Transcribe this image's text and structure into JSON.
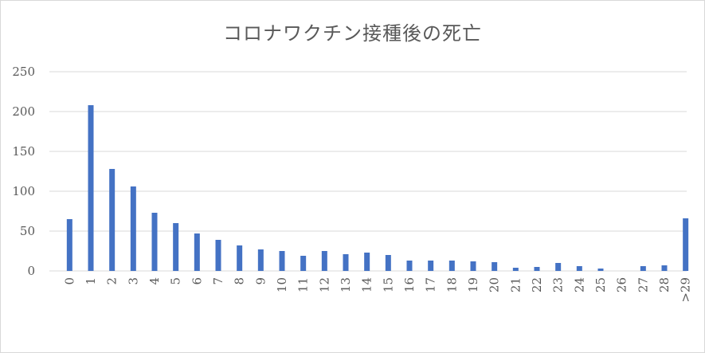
{
  "chart_data": {
    "type": "bar",
    "title": "コロナワクチン接種後の死亡",
    "xlabel": "",
    "ylabel": "",
    "ylim": [
      0,
      250
    ],
    "yticks": [
      0,
      50,
      100,
      150,
      200,
      250
    ],
    "grid": true,
    "legend": "none",
    "bar_color": "#4472c4",
    "categories": [
      "0",
      "1",
      "2",
      "3",
      "4",
      "5",
      "6",
      "7",
      "8",
      "9",
      "10",
      "11",
      "12",
      "13",
      "14",
      "15",
      "16",
      "17",
      "18",
      "19",
      "20",
      "21",
      "22",
      "23",
      "24",
      "25",
      "26",
      "27",
      "28",
      ">29"
    ],
    "values": [
      65,
      208,
      128,
      106,
      73,
      60,
      47,
      39,
      32,
      27,
      25,
      19,
      25,
      21,
      23,
      20,
      13,
      13,
      13,
      12,
      11,
      4,
      5,
      10,
      6,
      3,
      0,
      6,
      7,
      66
    ]
  }
}
